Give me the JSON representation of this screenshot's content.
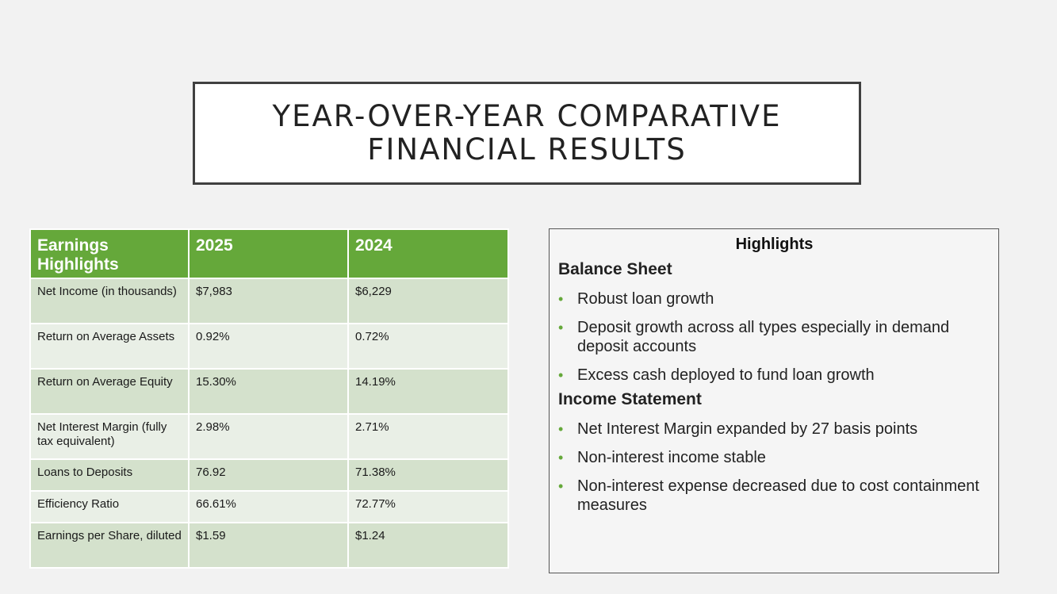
{
  "title": {
    "line1": "YEAR-OVER-YEAR COMPARATIVE",
    "line2": "FINANCIAL RESULTS"
  },
  "table": {
    "headers": [
      "Earnings Highlights",
      "2025",
      "2024"
    ],
    "rows": [
      {
        "label": "Net Income (in thousands)",
        "v2025": "$7,983",
        "v2024": "$6,229"
      },
      {
        "label": "Return on Average Assets",
        "v2025": "0.92%",
        "v2024": "0.72%"
      },
      {
        "label": "Return on Average Equity",
        "v2025": "15.30%",
        "v2024": "14.19%"
      },
      {
        "label": "Net Interest Margin (fully tax equivalent)",
        "v2025": "2.98%",
        "v2024": "2.71%"
      },
      {
        "label": "Loans to Deposits",
        "v2025": "76.92",
        "v2024": "71.38%"
      },
      {
        "label": "Efficiency Ratio",
        "v2025": "66.61%",
        "v2024": "72.77%"
      },
      {
        "label": "Earnings per Share, diluted",
        "v2025": "$1.59",
        "v2024": "$1.24"
      }
    ]
  },
  "highlights": {
    "title": "Highlights",
    "balance_sheet": {
      "heading": "Balance Sheet",
      "items": [
        "Robust loan growth",
        "Deposit growth across all types especially in demand deposit accounts",
        "Excess cash deployed to fund loan growth"
      ]
    },
    "income_statement": {
      "heading": "Income Statement",
      "items": [
        "Net Interest Margin expanded by 27 basis points",
        "Non-interest income stable",
        "Non-interest expense decreased due to cost containment measures"
      ]
    },
    "bullet_color": "#65a83a"
  },
  "colors": {
    "header_green": "#65a83a",
    "row_dark": "#d4e1cc",
    "row_light": "#e9efe6"
  }
}
